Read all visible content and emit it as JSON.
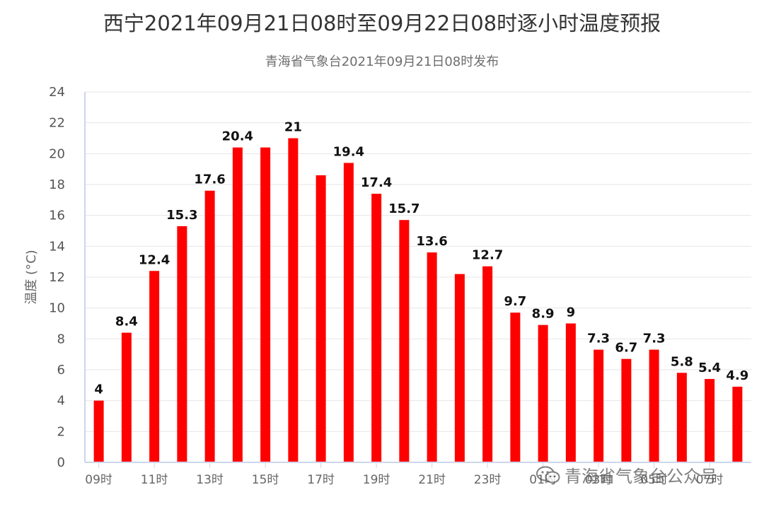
{
  "title": "西宁2021年09月21日08时至09月22日08时逐小时温度预报",
  "subtitle": "青海省气象台2021年09月21日08时发布",
  "watermark": "青海省气象台公众号",
  "watermark_icon": "wechat-icon",
  "colors": {
    "bar": "#ff0000",
    "grid": "#e6e6e6",
    "axis": "#ccd6eb"
  },
  "chart_data": {
    "type": "bar",
    "title": "西宁2021年09月21日08时至09月22日08时逐小时温度预报",
    "subtitle": "青海省气象台2021年09月21日08时发布",
    "ylabel": "温度 (°C)",
    "xlabel": "",
    "ylim": [
      0,
      24
    ],
    "yticks": [
      0,
      2,
      4,
      6,
      8,
      10,
      12,
      14,
      16,
      18,
      20,
      22,
      24
    ],
    "grid": true,
    "legend": "none",
    "x_tick_labels": [
      "09时",
      "11时",
      "13时",
      "15时",
      "17时",
      "19时",
      "21时",
      "23时",
      "01时",
      "03时",
      "05时",
      "07时"
    ],
    "values": [
      4,
      8.4,
      12.4,
      15.3,
      17.6,
      20.4,
      20.4,
      21,
      18.6,
      19.4,
      17.4,
      15.7,
      13.6,
      12.2,
      12.7,
      9.7,
      8.9,
      9,
      7.3,
      6.7,
      7.3,
      5.8,
      5.4,
      4.9
    ],
    "data_labels": [
      "4",
      "8.4",
      "12.4",
      "15.3",
      "17.6",
      "20.4",
      "",
      "21",
      "",
      "19.4",
      "17.4",
      "15.7",
      "13.6",
      "",
      "12.7",
      "9.7",
      "8.9",
      "9",
      "7.3",
      "6.7",
      "7.3",
      "5.8",
      "5.4",
      "4.9"
    ]
  }
}
